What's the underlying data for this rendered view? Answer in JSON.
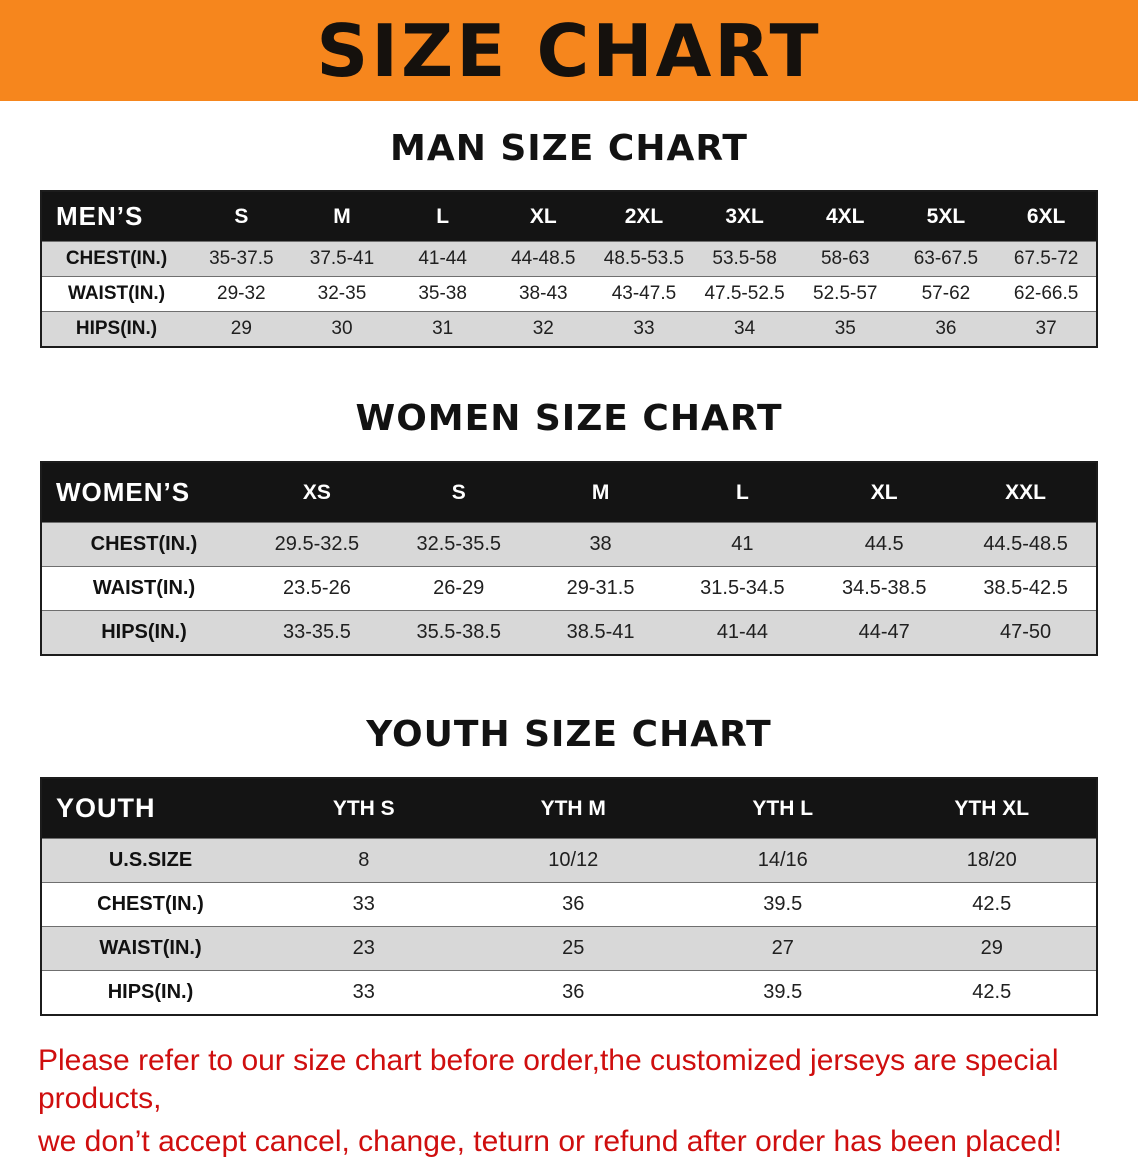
{
  "banner": {
    "title": "SIZE CHART"
  },
  "colors": {
    "banner_bg": "#f6861d",
    "header_bg": "#141414",
    "stripe": "#d8d8d8",
    "disclaimer": "#cf0e0e"
  },
  "tables": [
    {
      "id": "men",
      "title": "MAN SIZE CHART",
      "header": [
        "MEN’S",
        "S",
        "M",
        "L",
        "XL",
        "2XL",
        "3XL",
        "4XL",
        "5XL",
        "6XL"
      ],
      "rows": [
        [
          "CHEST(IN.)",
          "35-37.5",
          "37.5-41",
          "41-44",
          "44-48.5",
          "48.5-53.5",
          "53.5-58",
          "58-63",
          "63-67.5",
          "67.5-72"
        ],
        [
          "WAIST(IN.)",
          "29-32",
          "32-35",
          "35-38",
          "38-43",
          "43-47.5",
          "47.5-52.5",
          "52.5-57",
          "57-62",
          "62-66.5"
        ],
        [
          "HIPS(IN.)",
          "29",
          "30",
          "31",
          "32",
          "33",
          "34",
          "35",
          "36",
          "37"
        ]
      ]
    },
    {
      "id": "women",
      "title": "WOMEN SIZE CHART",
      "header": [
        "WOMEN’S",
        "XS",
        "S",
        "M",
        "L",
        "XL",
        "XXL"
      ],
      "rows": [
        [
          "CHEST(IN.)",
          "29.5-32.5",
          "32.5-35.5",
          "38",
          "41",
          "44.5",
          "44.5-48.5"
        ],
        [
          "WAIST(IN.)",
          "23.5-26",
          "26-29",
          "29-31.5",
          "31.5-34.5",
          "34.5-38.5",
          "38.5-42.5"
        ],
        [
          "HIPS(IN.)",
          "33-35.5",
          "35.5-38.5",
          "38.5-41",
          "41-44",
          "44-47",
          "47-50"
        ]
      ]
    },
    {
      "id": "youth",
      "title": "YOUTH SIZE CHART",
      "header": [
        "YOUTH",
        "YTH S",
        "YTH M",
        "YTH L",
        "YTH XL"
      ],
      "rows": [
        [
          "U.S.SIZE",
          "8",
          "10/12",
          "14/16",
          "18/20"
        ],
        [
          "CHEST(IN.)",
          "33",
          "36",
          "39.5",
          "42.5"
        ],
        [
          "WAIST(IN.)",
          "23",
          "25",
          "27",
          "29"
        ],
        [
          "HIPS(IN.)",
          "33",
          "36",
          "39.5",
          "42.5"
        ]
      ]
    }
  ],
  "disclaimer": {
    "lines": [
      "Please refer to our size chart before order,the customized jerseys are special products,",
      "we don’t accept cancel, change, teturn or refund after order has been placed!"
    ]
  }
}
